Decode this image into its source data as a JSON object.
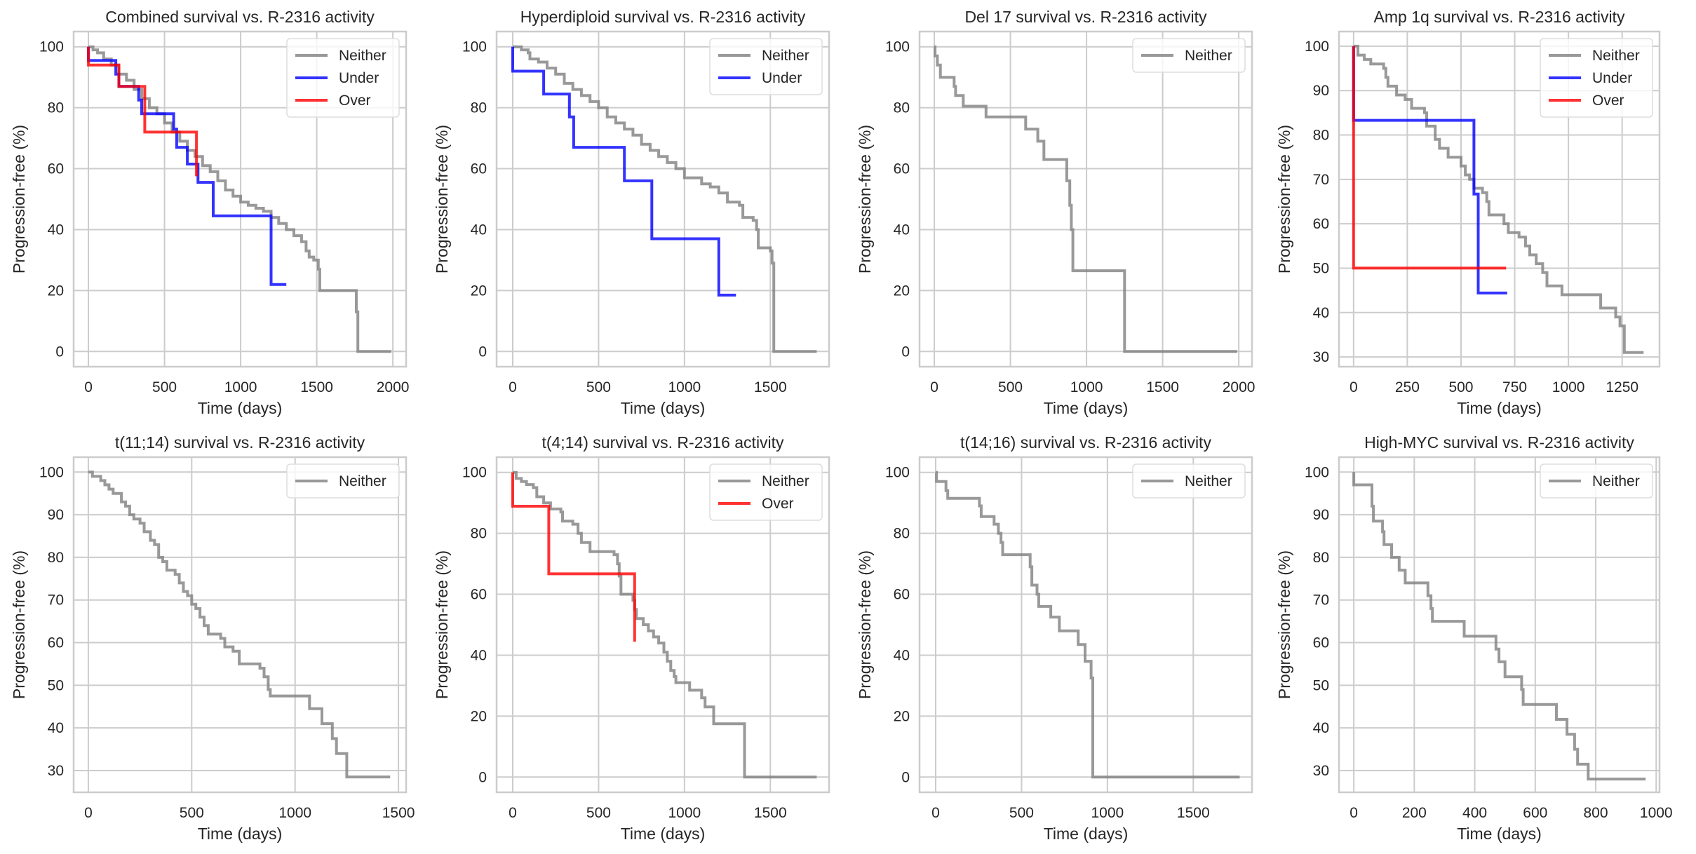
{
  "colors": {
    "Neither": "#808080",
    "Under": "#0000ff",
    "Over": "#ff0000",
    "grid": "#cccccc",
    "text": "#262626"
  },
  "chart_data": [
    {
      "type": "line",
      "title": "Combined survival vs. R-2316 activity",
      "xlabel": "Time (days)",
      "ylabel": "Progression-free (%)",
      "xlim": [
        -97,
        2087
      ],
      "ylim": [
        -5,
        105
      ],
      "xticks": [
        0,
        500,
        1000,
        1500,
        2000
      ],
      "yticks": [
        0,
        20,
        40,
        60,
        80,
        100
      ],
      "grid": true,
      "legend_position": "top-right",
      "legend": [
        "Neither",
        "Under",
        "Over"
      ],
      "series": [
        {
          "name": "Neither",
          "step": true,
          "x": [
            0,
            30,
            60,
            100,
            150,
            200,
            250,
            300,
            350,
            400,
            450,
            500,
            550,
            600,
            650,
            700,
            750,
            800,
            850,
            900,
            950,
            1000,
            1050,
            1100,
            1150,
            1200,
            1250,
            1300,
            1350,
            1400,
            1430,
            1450,
            1480,
            1510,
            1520,
            1750,
            1760,
            1770,
            1990
          ],
          "y": [
            100,
            99,
            98,
            96,
            94,
            91,
            89,
            86,
            83,
            80,
            78,
            75,
            72,
            69,
            66,
            64,
            61,
            59,
            56,
            53,
            51,
            49,
            48,
            47,
            46,
            44,
            42,
            40,
            38,
            36,
            33,
            31,
            30,
            27,
            20,
            20,
            13,
            0,
            0
          ]
        },
        {
          "name": "Under",
          "step": true,
          "x": [
            0,
            0,
            180,
            200,
            330,
            350,
            560,
            580,
            650,
            720,
            820,
            1200,
            1300
          ],
          "y": [
            100,
            95.5,
            91,
            87,
            82.5,
            78,
            73,
            67,
            61.5,
            55.5,
            44.5,
            22,
            22
          ]
        },
        {
          "name": "Over",
          "step": true,
          "x": [
            0,
            0,
            200,
            370,
            710,
            710
          ],
          "y": [
            100,
            94,
            87,
            72,
            72,
            57.5
          ]
        }
      ]
    },
    {
      "type": "line",
      "title": "Hyperdiploid survival vs. R-2316 activity",
      "xlabel": "Time (days)",
      "ylabel": "Progression-free (%)",
      "xlim": [
        -94,
        1842
      ],
      "ylim": [
        -5,
        105
      ],
      "xticks": [
        0,
        500,
        1000,
        1500
      ],
      "yticks": [
        0,
        20,
        40,
        60,
        80,
        100
      ],
      "grid": true,
      "legend_position": "top-right",
      "legend": [
        "Neither",
        "Under"
      ],
      "series": [
        {
          "name": "Neither",
          "step": true,
          "x": [
            0,
            50,
            90,
            100,
            150,
            200,
            250,
            300,
            350,
            400,
            450,
            500,
            550,
            600,
            650,
            700,
            750,
            800,
            850,
            900,
            950,
            1000,
            1100,
            1150,
            1200,
            1250,
            1320,
            1340,
            1400,
            1420,
            1430,
            1500,
            1510,
            1520,
            1770
          ],
          "y": [
            100,
            99,
            98,
            96,
            95,
            93,
            91,
            88,
            86,
            84,
            82,
            80,
            77,
            75,
            73,
            71,
            68,
            66,
            64,
            62,
            60,
            57,
            55,
            54,
            52,
            49,
            48,
            44,
            43,
            40,
            34,
            33,
            29,
            0,
            0
          ]
        },
        {
          "name": "Under",
          "step": true,
          "x": [
            0,
            0,
            180,
            330,
            355,
            650,
            810,
            1200,
            1300
          ],
          "y": [
            100,
            92,
            84.5,
            77,
            67,
            56,
            37,
            18.5,
            18.5
          ]
        }
      ]
    },
    {
      "type": "line",
      "title": "Del 17 survival vs. R-2316 activity",
      "xlabel": "Time (days)",
      "ylabel": "Progression-free (%)",
      "xlim": [
        -97,
        2087
      ],
      "ylim": [
        -5,
        105
      ],
      "xticks": [
        0,
        500,
        1000,
        1500,
        2000
      ],
      "yticks": [
        0,
        20,
        40,
        60,
        80,
        100
      ],
      "grid": true,
      "legend_position": "top-right",
      "legend": [
        "Neither"
      ],
      "series": [
        {
          "name": "Neither",
          "step": true,
          "x": [
            0,
            5,
            20,
            40,
            130,
            140,
            190,
            340,
            600,
            680,
            720,
            870,
            890,
            900,
            910,
            1250,
            1990
          ],
          "y": [
            100,
            97,
            94,
            90,
            87,
            84,
            80.5,
            77,
            73,
            69,
            63,
            56,
            48,
            40,
            26.5,
            0,
            0
          ]
        }
      ]
    },
    {
      "type": "line",
      "title": "Amp 1q survival vs. R-2316 activity",
      "xlabel": "Time (days)",
      "ylabel": "Progression-free (%)",
      "xlim": [
        -68,
        1424
      ],
      "ylim": [
        27.8,
        103.3
      ],
      "xticks": [
        0,
        250,
        500,
        750,
        1000,
        1250
      ],
      "yticks": [
        30,
        40,
        50,
        60,
        70,
        80,
        90,
        100
      ],
      "grid": true,
      "legend_position": "top-right",
      "legend": [
        "Neither",
        "Under",
        "Over"
      ],
      "series": [
        {
          "name": "Neither",
          "step": true,
          "x": [
            0,
            20,
            50,
            80,
            140,
            150,
            160,
            200,
            240,
            270,
            330,
            340,
            380,
            400,
            440,
            500,
            520,
            540,
            560,
            600,
            620,
            630,
            700,
            720,
            770,
            800,
            820,
            850,
            880,
            900,
            970,
            1150,
            1220,
            1240,
            1260,
            1350
          ],
          "y": [
            100,
            98,
            97,
            96,
            95,
            93,
            91,
            89,
            88,
            86,
            85,
            82,
            79,
            77,
            75,
            73,
            71,
            70,
            68,
            67,
            65,
            62,
            60,
            58,
            57,
            55,
            53,
            51,
            49,
            46,
            44,
            41,
            39,
            37,
            31,
            31
          ]
        },
        {
          "name": "Under",
          "step": true,
          "x": [
            0,
            0,
            560,
            580,
            715
          ],
          "y": [
            100,
            83.3,
            66.7,
            44.4,
            44.4
          ]
        },
        {
          "name": "Over",
          "step": true,
          "x": [
            0,
            0,
            710
          ],
          "y": [
            100,
            50,
            50
          ]
        }
      ]
    },
    {
      "type": "line",
      "title": "t(11;14) survival vs. R-2316 activity",
      "xlabel": "Time (days)",
      "ylabel": "Progression-free (%)",
      "xlim": [
        -71,
        1537
      ],
      "ylim": [
        24.9,
        103.5
      ],
      "xticks": [
        0,
        500,
        1000,
        1500
      ],
      "yticks": [
        30,
        40,
        50,
        60,
        70,
        80,
        90,
        100
      ],
      "grid": true,
      "legend_position": "top-right",
      "legend": [
        "Neither"
      ],
      "series": [
        {
          "name": "Neither",
          "step": true,
          "x": [
            0,
            20,
            60,
            80,
            100,
            120,
            160,
            180,
            200,
            220,
            250,
            270,
            300,
            320,
            340,
            360,
            380,
            420,
            440,
            460,
            480,
            500,
            520,
            540,
            560,
            580,
            640,
            660,
            700,
            730,
            830,
            850,
            870,
            880,
            1070,
            1130,
            1180,
            1200,
            1250,
            1460
          ],
          "y": [
            100,
            99,
            98,
            97,
            96,
            95,
            93,
            92,
            90,
            89,
            88,
            86,
            84,
            83,
            80,
            79,
            77,
            76,
            74,
            72,
            71,
            69,
            68,
            66,
            64,
            62,
            61,
            59,
            58,
            55,
            54,
            52,
            49,
            47.5,
            44.5,
            41,
            37.5,
            34,
            28.5,
            28.5
          ]
        }
      ]
    },
    {
      "type": "line",
      "title": "t(4;14) survival vs. R-2316 activity",
      "xlabel": "Time (days)",
      "ylabel": "Progression-free (%)",
      "xlim": [
        -94,
        1842
      ],
      "ylim": [
        -5,
        105
      ],
      "xticks": [
        0,
        500,
        1000,
        1500
      ],
      "yticks": [
        0,
        20,
        40,
        60,
        80,
        100
      ],
      "grid": true,
      "legend_position": "top-right",
      "legend": [
        "Neither",
        "Over"
      ],
      "series": [
        {
          "name": "Neither",
          "step": true,
          "x": [
            0,
            20,
            50,
            80,
            120,
            140,
            180,
            220,
            280,
            290,
            350,
            380,
            400,
            450,
            590,
            610,
            620,
            630,
            700,
            710,
            720,
            760,
            790,
            820,
            850,
            880,
            900,
            920,
            940,
            950,
            1030,
            1100,
            1120,
            1170,
            1350,
            1770
          ],
          "y": [
            100,
            98,
            97,
            96,
            95,
            92,
            90,
            88,
            87,
            84,
            83,
            80,
            77,
            74,
            73,
            70,
            66,
            60,
            58,
            55,
            52,
            50,
            48,
            46,
            44,
            41,
            38,
            35,
            33,
            31,
            28.5,
            26,
            23,
            17.5,
            0,
            0
          ]
        },
        {
          "name": "Over",
          "step": true,
          "x": [
            0,
            0,
            210,
            710,
            710
          ],
          "y": [
            100,
            88.9,
            66.7,
            66.7,
            44.4
          ]
        }
      ]
    },
    {
      "type": "line",
      "title": "t(14;16) survival vs. R-2316 activity",
      "xlabel": "Time (days)",
      "ylabel": "Progression-free (%)",
      "xlim": [
        -94,
        1842
      ],
      "ylim": [
        -5,
        105
      ],
      "xticks": [
        0,
        500,
        1000,
        1500
      ],
      "yticks": [
        0,
        20,
        40,
        60,
        80,
        100
      ],
      "grid": true,
      "legend_position": "top-right",
      "legend": [
        "Neither"
      ],
      "series": [
        {
          "name": "Neither",
          "step": true,
          "x": [
            0,
            5,
            60,
            70,
            255,
            265,
            340,
            365,
            380,
            390,
            550,
            560,
            590,
            600,
            670,
            720,
            830,
            870,
            905,
            915,
            1770
          ],
          "y": [
            100,
            97,
            94,
            91.5,
            89,
            85.5,
            83,
            80,
            77,
            73,
            69,
            63,
            60,
            56,
            52.5,
            48,
            43.5,
            38,
            32.5,
            0,
            0
          ]
        }
      ]
    },
    {
      "type": "line",
      "title": "High-MYC survival vs. R-2316 activity",
      "xlabel": "Time (days)",
      "ylabel": "Progression-free (%)",
      "xlim": [
        -49,
        1011
      ],
      "ylim": [
        24.9,
        103.5
      ],
      "xticks": [
        0,
        200,
        400,
        600,
        800,
        1000
      ],
      "yticks": [
        30,
        40,
        50,
        60,
        70,
        80,
        90,
        100
      ],
      "grid": true,
      "legend_position": "top-right",
      "legend": [
        "Neither"
      ],
      "series": [
        {
          "name": "Neither",
          "step": true,
          "x": [
            0,
            0,
            60,
            65,
            95,
            100,
            125,
            150,
            170,
            245,
            255,
            260,
            365,
            470,
            480,
            500,
            555,
            560,
            670,
            705,
            730,
            740,
            775,
            965
          ],
          "y": [
            100,
            97,
            92,
            88.5,
            86,
            83,
            80,
            77,
            74,
            71,
            68,
            65,
            61.5,
            58.5,
            55.5,
            52,
            49,
            45.5,
            42,
            38.5,
            35,
            31.5,
            28,
            28
          ]
        }
      ]
    }
  ]
}
